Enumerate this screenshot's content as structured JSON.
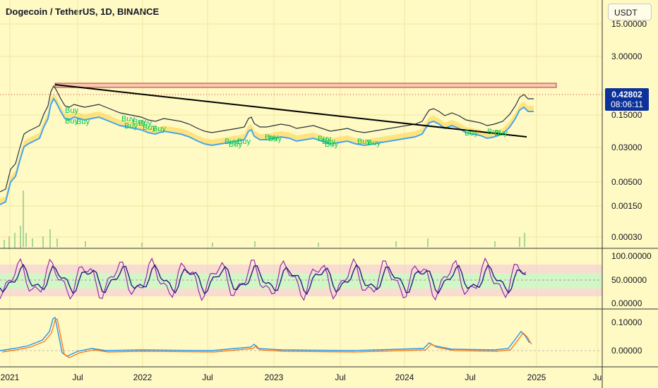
{
  "header": {
    "title": "Dogecoin / TetherUS, 1D, BINANCE",
    "currency": "USDT"
  },
  "price_label": {
    "value": "0.42802",
    "countdown": "08:06:11",
    "color": "#0c3299"
  },
  "colors": {
    "background": "#fff9c4",
    "trendline": "#000000",
    "resistance_fill": "#f8c8b0",
    "resistance_stroke": "#c0392b",
    "rsi_main": "#1a237e",
    "rsi_signal": "#9c27b0",
    "rsi_band": "#c8f5c8",
    "macd": "#2196f3",
    "signal": "#ff6d00",
    "buy": "#00c853"
  },
  "chart_data": [
    {
      "type": "line",
      "panel": "price",
      "scale": "log",
      "y_ticks": [
        "15.00000",
        "3.00000",
        "0.15000",
        "0.03000",
        "0.00500",
        "0.00150",
        "0.00030"
      ],
      "x_ticks": [
        "2021",
        "Jul",
        "2022",
        "Jul",
        "2023",
        "Jul",
        "2024",
        "Jul",
        "2025",
        "Ju"
      ],
      "last_price": 0.42802,
      "annotations": {
        "buy_signals": [
          "Buy",
          "Buy",
          "Buy",
          "Buy",
          "Buy",
          "Buy",
          "Buy",
          "Buy",
          "Buy",
          "Buy",
          "Buy",
          "Buy",
          "Buy",
          "Buy",
          "Buy",
          "Buy",
          "Buy",
          "Buy",
          "Buy",
          "Buy",
          "Buy",
          "Buy"
        ]
      }
    },
    {
      "type": "line",
      "panel": "rsi",
      "y_ticks": [
        "100.00000",
        "50.00000",
        "0.00000"
      ]
    },
    {
      "type": "line",
      "panel": "macd",
      "y_ticks": [
        "0.10000",
        "0.00000"
      ]
    }
  ]
}
